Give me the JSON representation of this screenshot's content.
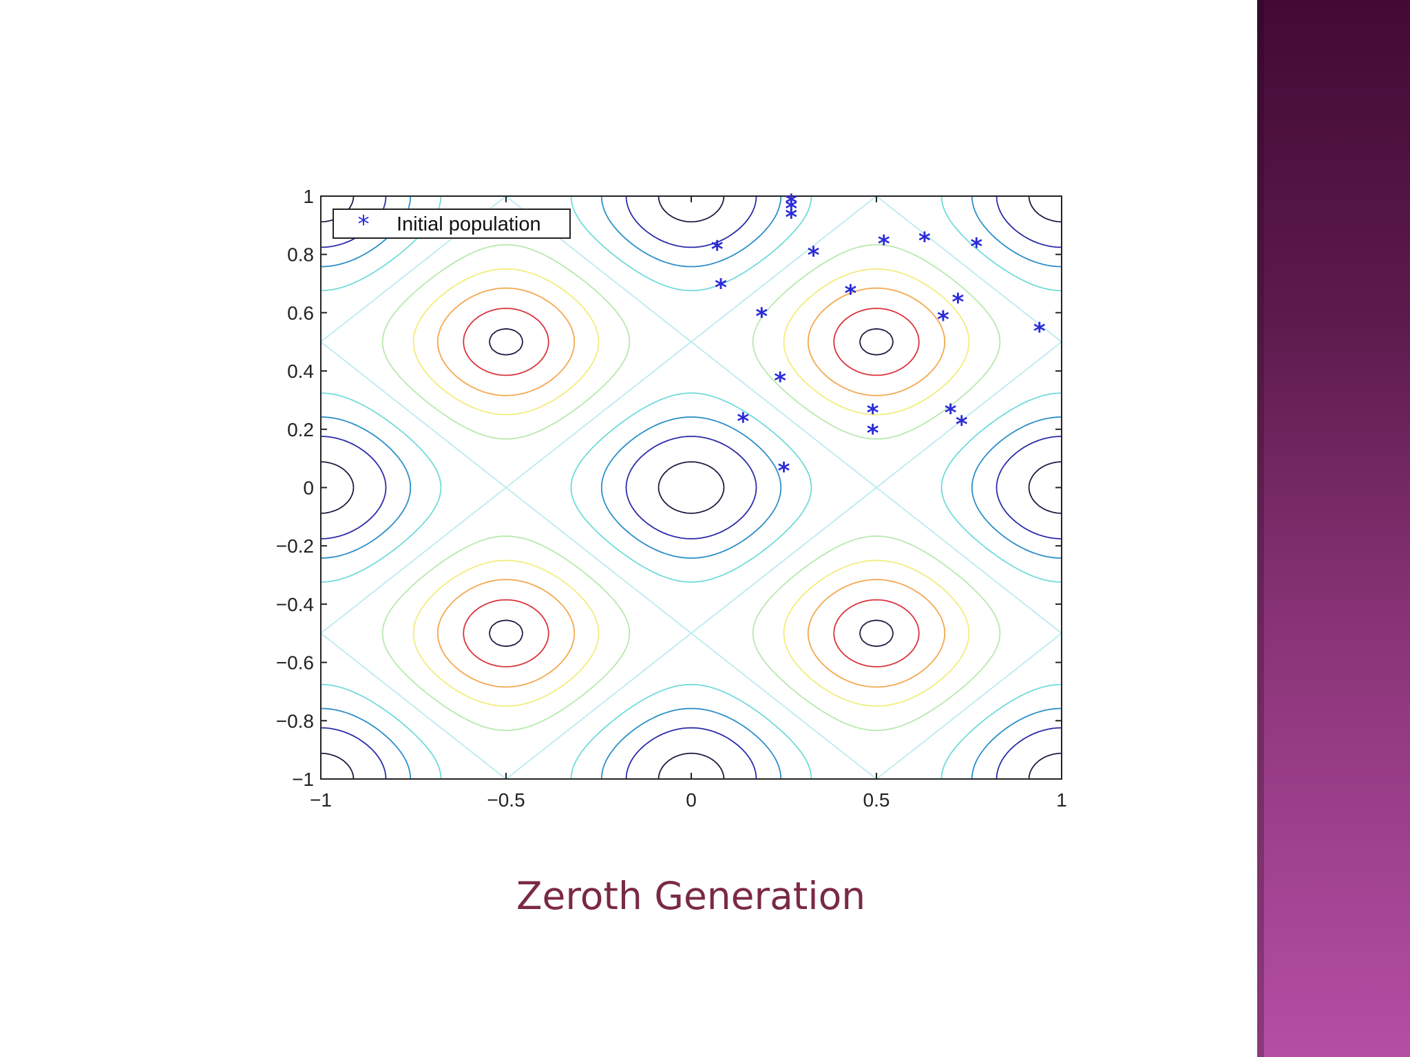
{
  "slide": {
    "caption": "Zeroth Generation",
    "colors": {
      "side_band_top": "#430a35",
      "side_band_bottom": "#b44ea4",
      "caption": "#7a2946",
      "marker": "#2a2ad8"
    }
  },
  "chart_data": {
    "type": "scatter",
    "title": "",
    "xlabel": "",
    "ylabel": "",
    "xlim": [
      -1,
      1
    ],
    "ylim": [
      -1,
      1
    ],
    "x_ticks": [
      -1,
      -0.5,
      0,
      0.5,
      1
    ],
    "x_tick_labels": [
      "−1",
      "−0.5",
      "0",
      "0.5",
      "1"
    ],
    "y_ticks": [
      -1,
      -0.8,
      -0.6,
      -0.4,
      -0.2,
      0,
      0.2,
      0.4,
      0.6,
      0.8,
      1
    ],
    "y_tick_labels": [
      "−1",
      "−0.8",
      "−0.6",
      "−0.4",
      "−0.2",
      "0",
      "0.2",
      "0.4",
      "0.6",
      "0.8",
      "1"
    ],
    "grid": false,
    "legend": {
      "position": "top-left",
      "entries": [
        "Initial population"
      ]
    },
    "background": {
      "type": "contour",
      "function": "cos(2*pi*x) + cos(2*pi*y)",
      "minima": [
        [
          -0.5,
          0.5
        ],
        [
          0.5,
          0.5
        ],
        [
          -0.5,
          -0.5
        ],
        [
          0.5,
          -0.5
        ]
      ],
      "maxima": [
        [
          0,
          0
        ],
        [
          1,
          0
        ],
        [
          -1,
          0
        ],
        [
          0,
          1
        ],
        [
          0,
          -1
        ],
        [
          1,
          1
        ],
        [
          -1,
          1
        ],
        [
          1,
          -1
        ],
        [
          -1,
          -1
        ]
      ],
      "levels": [
        {
          "value": 1.85,
          "color": "#1a1a40"
        },
        {
          "value": 1.45,
          "color": "#2a2aaa"
        },
        {
          "value": 1.05,
          "color": "#2a8ec8"
        },
        {
          "value": 0.55,
          "color": "#6fdbd9"
        },
        {
          "value": 0.0,
          "color": "#b9ebef"
        },
        {
          "value": -0.5,
          "color": "#b6e9ac"
        },
        {
          "value": -1.0,
          "color": "#f2ec7c"
        },
        {
          "value": -1.4,
          "color": "#f4a74e"
        },
        {
          "value": -1.75,
          "color": "#d9323a"
        },
        {
          "value": -1.96,
          "color": "#1a1a40"
        }
      ]
    },
    "series": [
      {
        "name": "Initial population",
        "marker": "*",
        "color": "#2a2ad8",
        "points": [
          [
            0.27,
            0.98
          ],
          [
            0.27,
            0.96
          ],
          [
            0.27,
            0.93
          ],
          [
            0.07,
            0.82
          ],
          [
            0.33,
            0.8
          ],
          [
            0.52,
            0.84
          ],
          [
            0.63,
            0.85
          ],
          [
            0.77,
            0.83
          ],
          [
            0.08,
            0.69
          ],
          [
            0.43,
            0.67
          ],
          [
            0.72,
            0.64
          ],
          [
            0.19,
            0.59
          ],
          [
            0.68,
            0.58
          ],
          [
            0.94,
            0.54
          ],
          [
            0.24,
            0.37
          ],
          [
            0.14,
            0.23
          ],
          [
            0.49,
            0.26
          ],
          [
            0.7,
            0.26
          ],
          [
            0.73,
            0.22
          ],
          [
            0.49,
            0.19
          ],
          [
            0.25,
            0.06
          ]
        ]
      }
    ]
  }
}
